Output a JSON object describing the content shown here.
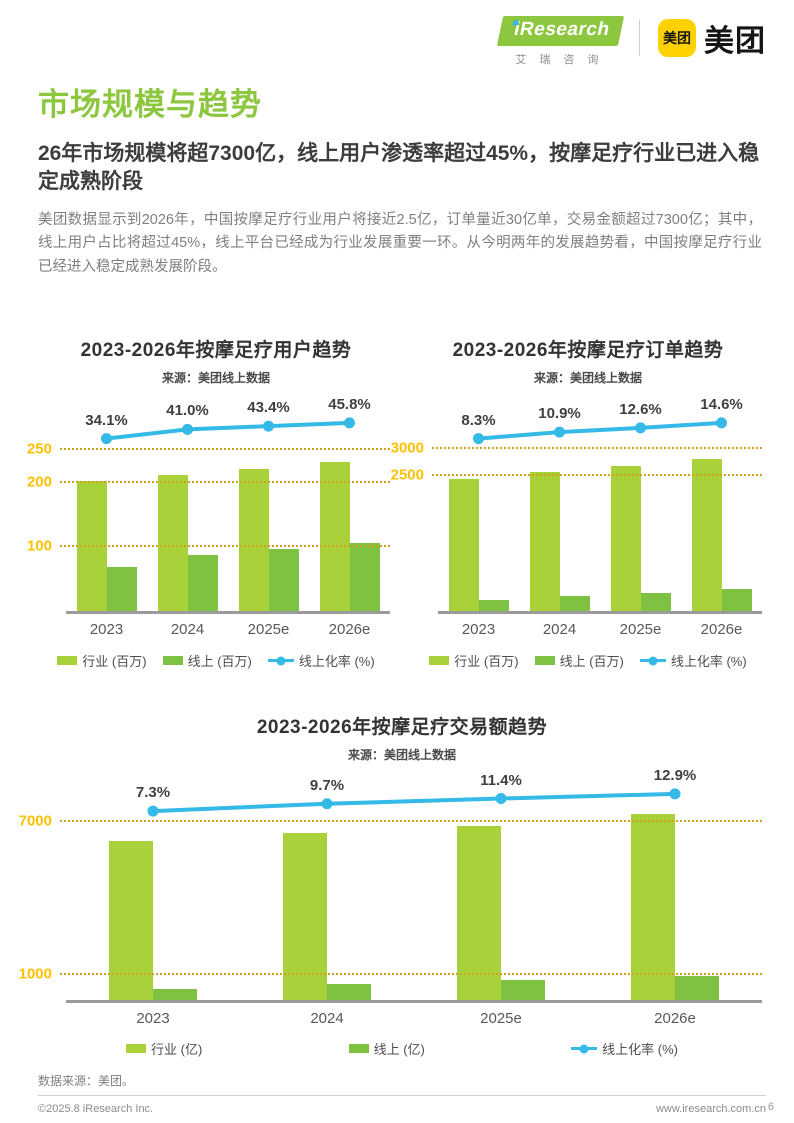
{
  "header": {
    "iresearch_logo_text": "iResearch",
    "iresearch_logo_sub": "艾瑞咨询",
    "meituan_badge": "美团",
    "meituan_name": "美团"
  },
  "page": {
    "title": "市场规模与趋势",
    "heading": "26年市场规模将超7300亿，线上用户渗透率超过45%，按摩足疗行业已进入稳定成熟阶段",
    "body": "美团数据显示到2026年，中国按摩足疗行业用户将接近2.5亿，订单量近30亿单，交易金额超过7300亿；其中，线上用户占比将超过45%，线上平台已经成为行业发展重要一环。从今明两年的发展趋势看，中国按摩足疗行业已经进入稳定成熟发展阶段。"
  },
  "colors": {
    "brand_green": "#8dc63f",
    "meituan_yellow": "#ffd100",
    "industry_bar": "#a9d23a",
    "online_bar": "#7fc241",
    "rate_line": "#35b9e6",
    "axis_label": "#ffc000",
    "gridline": "#cf9f1e"
  },
  "chart_data": [
    {
      "type": "bar",
      "title": "2023-2026年按摩足疗用户趋势",
      "source": "来源：美团线上数据",
      "categories": [
        "2023",
        "2024",
        "2025e",
        "2026e"
      ],
      "series": [
        {
          "name": "行业 (百万)",
          "kind": "bar",
          "values": [
            203,
            212,
            221,
            232
          ]
        },
        {
          "name": "线上 (百万)",
          "kind": "bar",
          "values": [
            69,
            87,
            96,
            106
          ]
        },
        {
          "name": "线上化率 (%)",
          "kind": "line",
          "values": [
            34.1,
            41.0,
            43.4,
            45.8
          ],
          "labels": [
            "34.1%",
            "41.0%",
            "43.4%",
            "45.8%"
          ]
        }
      ],
      "ylim": [
        0,
        260
      ],
      "gridlines": [
        250,
        200,
        100
      ],
      "grid_on": true,
      "legend_position": "bottom"
    },
    {
      "type": "bar",
      "title": "2023-2026年按摩足疗订单趋势",
      "source": "来源：美团线上数据",
      "categories": [
        "2023",
        "2024",
        "2025e",
        "2026e"
      ],
      "series": [
        {
          "name": "行业 (百万)",
          "kind": "bar",
          "values": [
            2450,
            2580,
            2690,
            2830
          ]
        },
        {
          "name": "线上 (百万)",
          "kind": "bar",
          "values": [
            205,
            280,
            340,
            415
          ]
        },
        {
          "name": "线上化率 (%)",
          "kind": "line",
          "values": [
            8.3,
            10.9,
            12.6,
            14.6
          ],
          "labels": [
            "8.3%",
            "10.9%",
            "12.6%",
            "14.6%"
          ]
        }
      ],
      "ylim": [
        0,
        3100
      ],
      "gridlines": [
        3000,
        2500
      ],
      "grid_on": true,
      "legend_position": "bottom"
    },
    {
      "type": "bar",
      "title": "2023-2026年按摩足疗交易额趋势",
      "source": "来源：美团线上数据",
      "categories": [
        "2023",
        "2024",
        "2025e",
        "2026e"
      ],
      "series": [
        {
          "name": "行业 (亿)",
          "kind": "bar",
          "values": [
            6250,
            6550,
            6850,
            7320
          ]
        },
        {
          "name": "线上 (亿)",
          "kind": "bar",
          "values": [
            455,
            635,
            780,
            940
          ]
        },
        {
          "name": "线上化率 (%)",
          "kind": "line",
          "values": [
            7.3,
            9.7,
            11.4,
            12.9
          ],
          "labels": [
            "7.3%",
            "9.7%",
            "11.4%",
            "12.9%"
          ]
        }
      ],
      "ylim": [
        0,
        7200
      ],
      "gridlines": [
        7000,
        1000
      ],
      "grid_on": true,
      "legend_position": "bottom"
    }
  ],
  "footer": {
    "data_source": "数据来源：美团。",
    "copyright": "©2025.8 iResearch Inc.",
    "website": "www.iresearch.com.cn",
    "page_number": "6"
  }
}
